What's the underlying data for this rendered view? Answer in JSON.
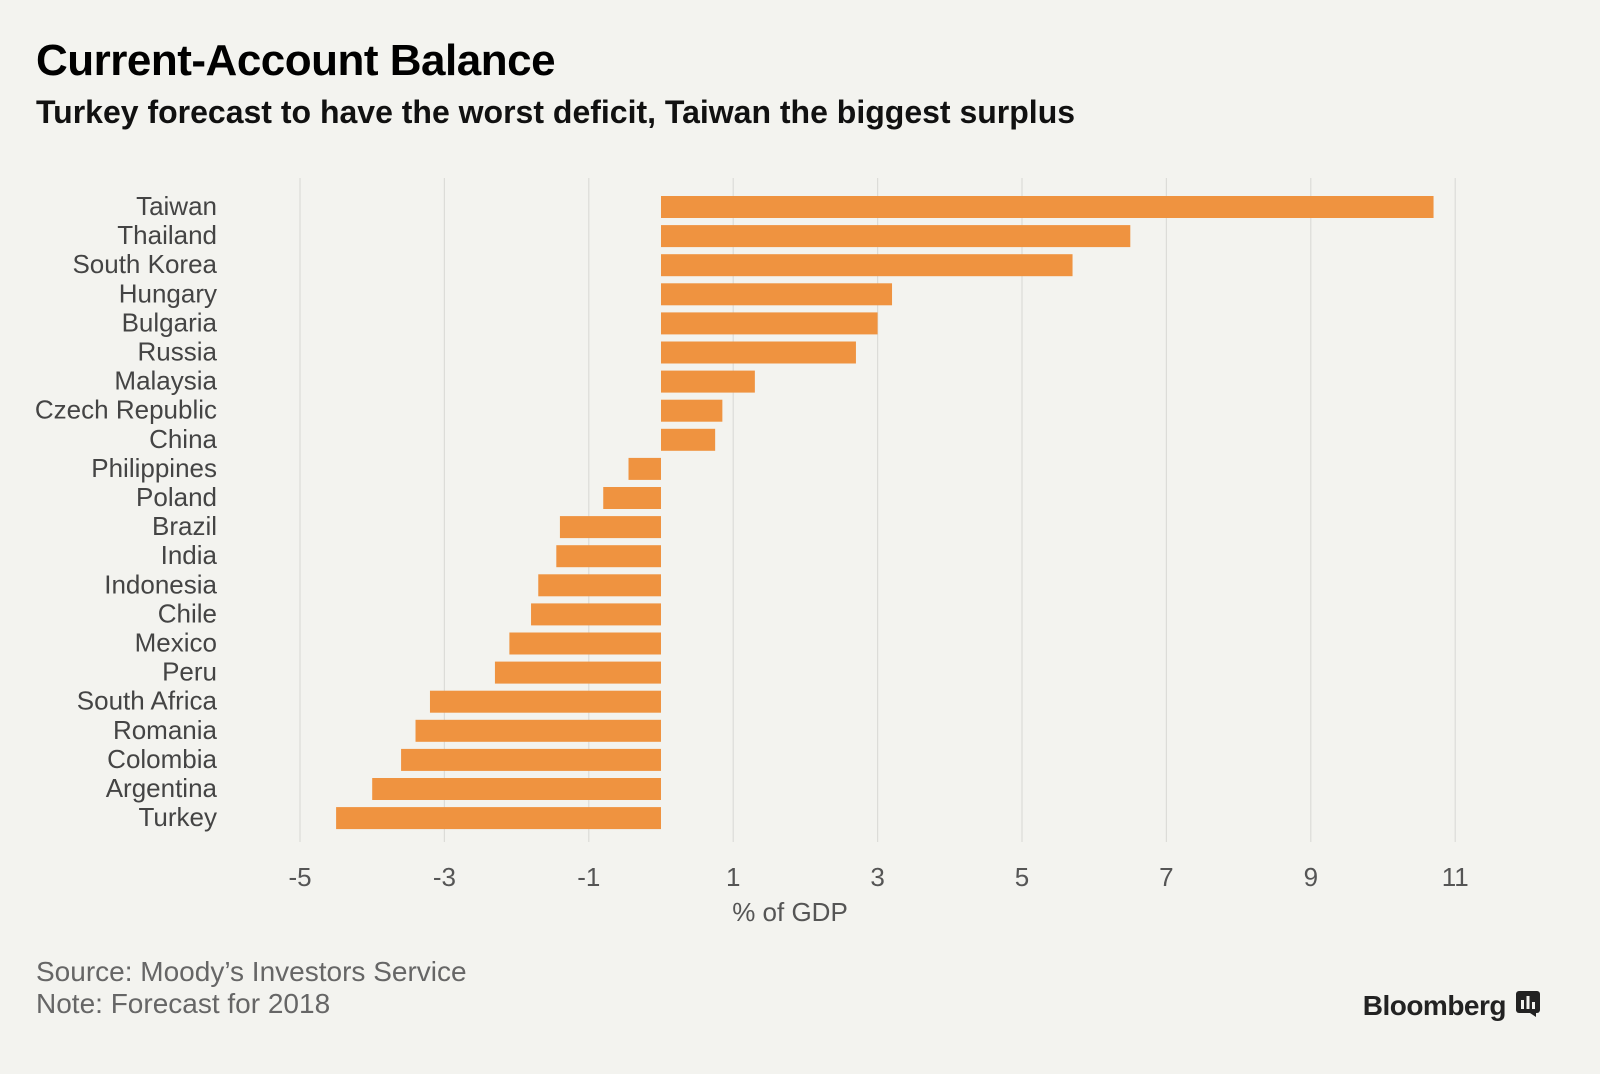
{
  "header": {
    "title": "Current-Account Balance",
    "subtitle": "Turkey forecast to have the worst deficit, Taiwan the biggest surplus"
  },
  "footer": {
    "source": "Source: Moody’s Investors Service",
    "note": "Note: Forecast for 2018",
    "brand": "Bloomberg",
    "brand_icon": "bloomberg-chart-icon"
  },
  "colors": {
    "bar": "#ef9340",
    "gridline": "#dcdcd8",
    "tick_label": "#555555",
    "category_label": "#444444"
  },
  "chart_data": {
    "type": "bar",
    "orientation": "horizontal",
    "title": "Current-Account Balance",
    "subtitle": "Turkey forecast to have the worst deficit, Taiwan the biggest surplus",
    "xlabel": "% of GDP",
    "ylabel": "",
    "xlim": [
      -5,
      11
    ],
    "xticks": [
      -5,
      -3,
      -1,
      1,
      3,
      5,
      7,
      9,
      11
    ],
    "grid": "vertical",
    "legend": "none",
    "bar_baseline": 0,
    "categories": [
      "Taiwan",
      "Thailand",
      "South Korea",
      "Hungary",
      "Bulgaria",
      "Russia",
      "Malaysia",
      "Czech Republic",
      "China",
      "Philippines",
      "Poland",
      "Brazil",
      "India",
      "Indonesia",
      "Chile",
      "Mexico",
      "Peru",
      "South Africa",
      "Romania",
      "Colombia",
      "Argentina",
      "Turkey"
    ],
    "values": [
      10.7,
      6.5,
      5.7,
      3.2,
      3.0,
      2.7,
      1.3,
      0.85,
      0.75,
      -0.45,
      -0.8,
      -1.4,
      -1.45,
      -1.7,
      -1.8,
      -2.1,
      -2.3,
      -3.2,
      -3.4,
      -3.6,
      -4.0,
      -4.5
    ]
  }
}
